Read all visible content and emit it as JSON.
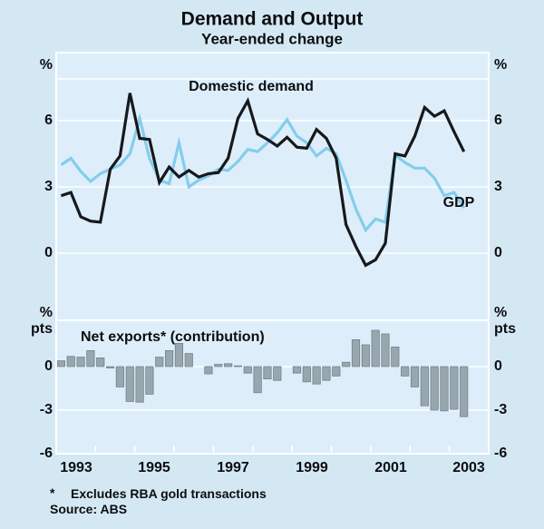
{
  "title": "Demand and Output",
  "subtitle": "Year-ended change",
  "top_panel": {
    "unit_left": "%",
    "unit_right": "%",
    "series_label_domestic_demand": "Domestic demand",
    "series_label_gdp": "GDP",
    "ticks": [
      "6",
      "3",
      "0"
    ]
  },
  "bottom_panel": {
    "unit_line1": "%",
    "unit_line2": "pts",
    "label": "Net exports* (contribution)",
    "ticks": [
      "0",
      "-3",
      "-6"
    ]
  },
  "x_axis": {
    "years": [
      "1993",
      "1995",
      "1997",
      "1999",
      "2001",
      "2003"
    ]
  },
  "footnote": {
    "marker": "*",
    "text": "Excludes RBA gold transactions"
  },
  "source": "Source: ABS",
  "colors": {
    "page_background": "#d4e8f4",
    "plot_background": "#ddeefa",
    "grid": "#ffffff",
    "domestic_demand": "#17181b",
    "gdp": "#84cdec",
    "bar_fill": "#98a6ae",
    "bar_stroke": "#72838d",
    "text": "#0d0d0f"
  },
  "chart_data": [
    {
      "type": "line",
      "panel": "top",
      "title": "Demand and Output - Year-ended change",
      "ylabel": "%",
      "ylim": [
        -3,
        9
      ],
      "yticks": [
        0,
        3,
        6
      ],
      "grid": true,
      "x_range": [
        1993,
        2004
      ],
      "categories": [
        "1993 Q1",
        "1993 Q2",
        "1993 Q3",
        "1993 Q4",
        "1994 Q1",
        "1994 Q2",
        "1994 Q3",
        "1994 Q4",
        "1995 Q1",
        "1995 Q2",
        "1995 Q3",
        "1995 Q4",
        "1996 Q1",
        "1996 Q2",
        "1996 Q3",
        "1996 Q4",
        "1997 Q1",
        "1997 Q2",
        "1997 Q3",
        "1997 Q4",
        "1998 Q1",
        "1998 Q2",
        "1998 Q3",
        "1998 Q4",
        "1999 Q1",
        "1999 Q2",
        "1999 Q3",
        "1999 Q4",
        "2000 Q1",
        "2000 Q2",
        "2000 Q3",
        "2000 Q4",
        "2001 Q1",
        "2001 Q2",
        "2001 Q3",
        "2001 Q4",
        "2002 Q1",
        "2002 Q2",
        "2002 Q3",
        "2002 Q4",
        "2003 Q1",
        "2003 Q2"
      ],
      "series": [
        {
          "name": "Domestic demand",
          "color": "#17181b",
          "values": [
            2.6,
            2.75,
            1.65,
            1.45,
            1.4,
            3.8,
            4.4,
            7.25,
            5.2,
            5.15,
            3.2,
            3.9,
            3.45,
            3.75,
            3.45,
            3.6,
            3.65,
            4.3,
            6.1,
            6.9,
            5.4,
            5.15,
            4.85,
            5.25,
            4.8,
            4.75,
            5.6,
            5.2,
            4.3,
            1.3,
            0.3,
            -0.55,
            -0.3,
            0.45,
            4.5,
            4.4,
            5.3,
            6.6,
            6.2,
            6.45,
            5.5,
            4.6
          ]
        },
        {
          "name": "GDP",
          "color": "#84cdec",
          "values": [
            4.0,
            4.3,
            3.7,
            3.25,
            3.6,
            3.8,
            4.0,
            4.5,
            6.1,
            4.3,
            3.3,
            3.15,
            5.0,
            3.0,
            3.3,
            3.5,
            3.8,
            3.75,
            4.15,
            4.7,
            4.6,
            5.0,
            5.45,
            6.05,
            5.3,
            5.0,
            4.4,
            4.75,
            4.5,
            3.3,
            2.0,
            1.05,
            1.55,
            1.4,
            4.45,
            4.1,
            3.85,
            3.85,
            3.4,
            2.6,
            2.75,
            2.05
          ]
        }
      ],
      "legend_position": "inline-labels"
    },
    {
      "type": "bar",
      "panel": "bottom",
      "title": "Net exports* (contribution)",
      "ylabel": "% pts",
      "ylim": [
        -6,
        3
      ],
      "yticks": [
        -6,
        -3,
        0
      ],
      "grid": true,
      "categories": [
        "1993 Q1",
        "1993 Q2",
        "1993 Q3",
        "1993 Q4",
        "1994 Q1",
        "1994 Q2",
        "1994 Q3",
        "1994 Q4",
        "1995 Q1",
        "1995 Q2",
        "1995 Q3",
        "1995 Q4",
        "1996 Q1",
        "1996 Q2",
        "1996 Q3",
        "1996 Q4",
        "1997 Q1",
        "1997 Q2",
        "1997 Q3",
        "1997 Q4",
        "1998 Q1",
        "1998 Q2",
        "1998 Q3",
        "1998 Q4",
        "1999 Q1",
        "1999 Q2",
        "1999 Q3",
        "1999 Q4",
        "2000 Q1",
        "2000 Q2",
        "2000 Q3",
        "2000 Q4",
        "2001 Q1",
        "2001 Q2",
        "2001 Q3",
        "2001 Q4",
        "2002 Q1",
        "2002 Q2",
        "2002 Q3",
        "2002 Q4",
        "2003 Q1",
        "2003 Q2"
      ],
      "values": [
        0.4,
        0.7,
        0.65,
        1.1,
        0.6,
        -0.1,
        -1.4,
        -2.4,
        -2.45,
        -1.9,
        0.65,
        1.1,
        1.6,
        0.9,
        0.0,
        -0.5,
        0.15,
        0.2,
        0.05,
        -0.45,
        -1.8,
        -0.85,
        -0.95,
        0.0,
        -0.45,
        -1.05,
        -1.2,
        -0.95,
        -0.65,
        0.3,
        1.85,
        1.5,
        2.5,
        2.25,
        1.35,
        -0.65,
        -1.4,
        -2.7,
        -3.0,
        -3.05,
        -2.95,
        -3.45
      ]
    }
  ]
}
